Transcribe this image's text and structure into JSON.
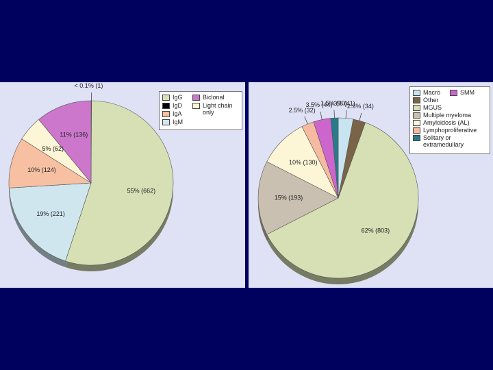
{
  "chart_data": [
    {
      "type": "pie",
      "categories": [
        "IgG",
        "IgD",
        "IgA",
        "IgM",
        "Biclonal",
        "Light chain only"
      ],
      "values": [
        55,
        0.1,
        10,
        19,
        11,
        5
      ],
      "value_labels": [
        "55% (662)",
        "< 0.1% (1)",
        "10% (124)",
        "19% (221)",
        "11% (136)",
        "5% (62)"
      ],
      "colors": [
        "#d6e0b4",
        "#000000",
        "#f7c0a2",
        "#cfe6ee",
        "#cc77cc",
        "#fdf6d6"
      ]
    },
    {
      "type": "pie",
      "categories": [
        "Macro",
        "SMM",
        "Other",
        "MGUS",
        "Multiple myeloma",
        "Amyloidosis (AL)",
        "Lymphoproliferative",
        "Solitary or extramedullary"
      ],
      "values": [
        3,
        3.5,
        2.5,
        62,
        15,
        10,
        2.5,
        1.5
      ],
      "value_labels": [
        "3% (41)",
        "3.5% (44)",
        "2.5% (34)",
        "62% (803)",
        "15% (193)",
        "10% (130)",
        "2.5% (32)",
        "1.5% (20)"
      ],
      "colors": [
        "#c8e4f0",
        "#cc66cc",
        "#7a6448",
        "#d6e0b4",
        "#c9c0b2",
        "#fdf6d6",
        "#f5baa0",
        "#2a7a8a"
      ]
    }
  ]
}
